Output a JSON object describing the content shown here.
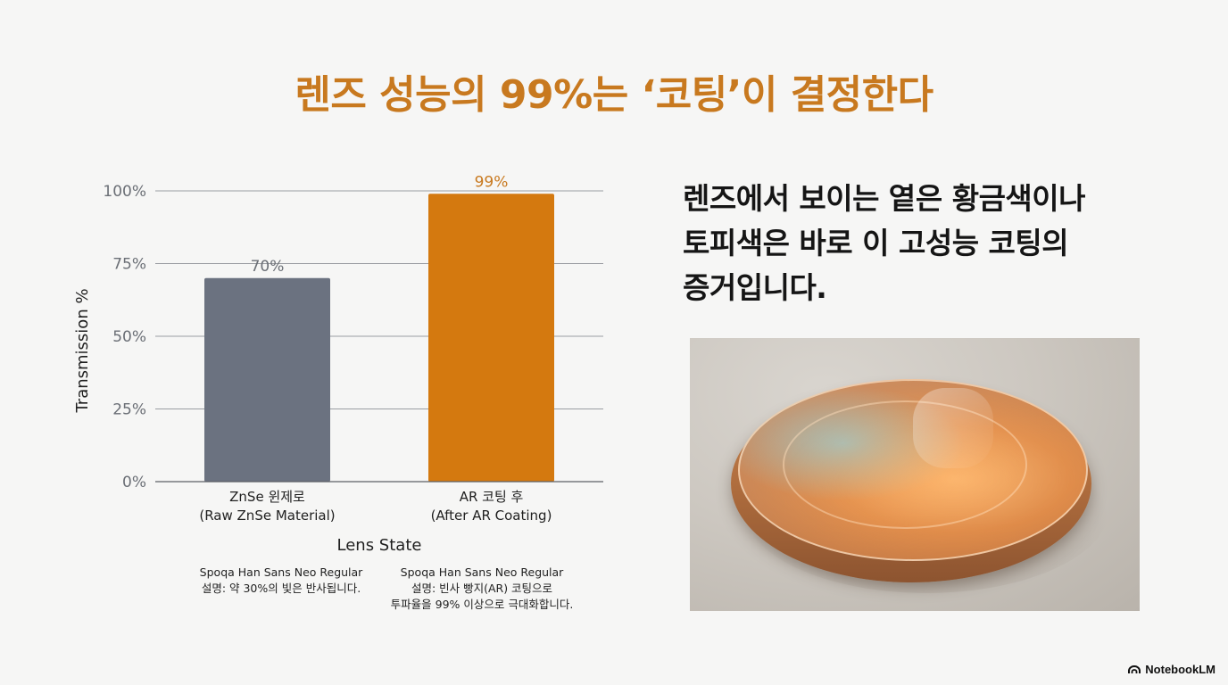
{
  "title": "렌즈 성능의 99%는 ‘코팅’이 결정한다",
  "chart_data": {
    "type": "bar",
    "categories": [
      [
        "ZnSe 윈제로",
        "(Raw ZnSe Material)"
      ],
      [
        "AR 코팅 후",
        "(After AR Coating)"
      ]
    ],
    "values": [
      70,
      99
    ],
    "data_labels": [
      "70%",
      "99%"
    ],
    "colors": [
      "#6b7280",
      "#d4790f"
    ],
    "label_colors": [
      "#6b6f76",
      "#c8791f"
    ],
    "ylabel": "Transmission %",
    "xlabel": "Lens State",
    "ylim": [
      0,
      100
    ],
    "yticks": [
      0,
      25,
      50,
      75,
      100
    ],
    "ytick_labels": [
      "0%",
      "25%",
      "50%",
      "75%",
      "100%"
    ],
    "grid": true,
    "legend": "none"
  },
  "notes": [
    {
      "font": "Spoqa Han Sans Neo Regular",
      "lines": [
        "설명: 약 30%의 빛은 반사됩니다."
      ]
    },
    {
      "font": "Spoqa Han Sans Neo Regular",
      "lines": [
        "설명: 빈사 빵지(AR) 코팅으로",
        "투파율을 99% 이상으로 극대화합니다."
      ]
    }
  ],
  "side_text": {
    "lines": [
      "렌즈에서 보이는 옅은 황금색이나",
      "토피색은 바로 이 고성능 코팅의",
      "증거입니다."
    ]
  },
  "image": {
    "subject": "orange-coated optical lens on a grey surface"
  },
  "brand": {
    "name": "NotebookLM",
    "icon": "notebooklm-logo-icon"
  }
}
